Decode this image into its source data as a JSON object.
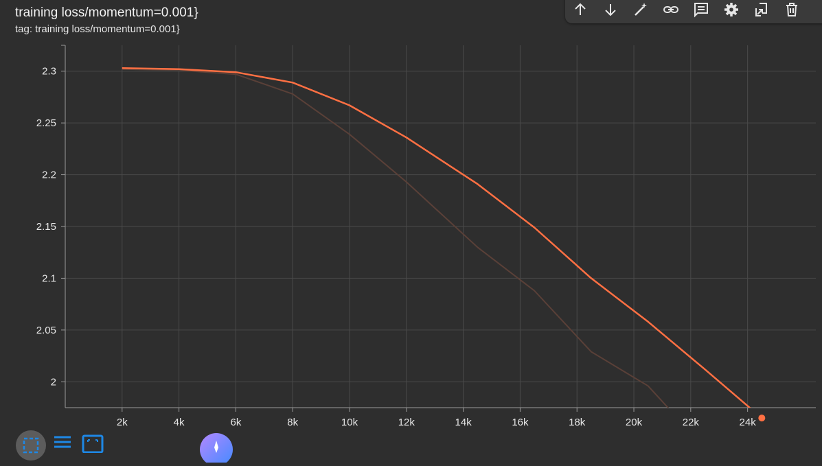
{
  "header": {
    "title": "training loss/momentum=0.001}",
    "subtitle": "tag: training loss/momentum=0.001}"
  },
  "toolbar": {
    "buttons": [
      {
        "name": "arrow-up-icon"
      },
      {
        "name": "arrow-down-icon"
      },
      {
        "name": "magic-wand-icon"
      },
      {
        "name": "link-icon"
      },
      {
        "name": "comment-icon"
      },
      {
        "name": "settings-gear-icon"
      },
      {
        "name": "download-icon"
      },
      {
        "name": "delete-icon"
      }
    ]
  },
  "colors": {
    "smoothed_line": "#ff7043",
    "raw_line": "#5a4038",
    "background": "#2e2e2e",
    "grid": "#4a4a4a",
    "accent_blue": "#1e88e5"
  },
  "chart_data": {
    "type": "line",
    "title": "training loss/momentum=0.001}",
    "xlabel": "",
    "ylabel": "",
    "xlim": [
      0,
      26400
    ],
    "ylim": [
      1.975,
      2.325
    ],
    "x_ticks": [
      2000,
      4000,
      6000,
      8000,
      10000,
      12000,
      14000,
      16000,
      18000,
      20000,
      22000,
      24000
    ],
    "x_tick_labels": [
      "2k",
      "4k",
      "6k",
      "8k",
      "10k",
      "12k",
      "14k",
      "16k",
      "18k",
      "20k",
      "22k",
      "24k"
    ],
    "y_ticks": [
      2.0,
      2.05,
      2.1,
      2.15,
      2.2,
      2.25,
      2.3
    ],
    "y_tick_labels": [
      "2",
      "2.05",
      "2.1",
      "2.15",
      "2.2",
      "2.25",
      "2.3"
    ],
    "grid": true,
    "series": [
      {
        "role": "smoothed",
        "x": [
          2000,
          4000,
          6000,
          8000,
          10000,
          12000,
          14500,
          16500,
          18500,
          20500,
          22500,
          24500
        ],
        "y": [
          2.303,
          2.302,
          2.299,
          2.289,
          2.267,
          2.236,
          2.191,
          2.149,
          2.1,
          2.058,
          2.012,
          1.965
        ]
      },
      {
        "role": "raw",
        "x": [
          2000,
          4000,
          6000,
          8000,
          10000,
          12000,
          14500,
          16500,
          18500,
          20500,
          22000
        ],
        "y": [
          2.302,
          2.301,
          2.297,
          2.278,
          2.239,
          2.193,
          2.13,
          2.088,
          2.029,
          1.996,
          1.951
        ]
      }
    ],
    "last_point_marker": true
  },
  "bottom_bar": {
    "buttons": [
      {
        "name": "fit-domain-icon"
      },
      {
        "name": "toggle-log-scale-icon"
      },
      {
        "name": "expand-icon"
      },
      {
        "name": "assistant-icon"
      }
    ]
  }
}
